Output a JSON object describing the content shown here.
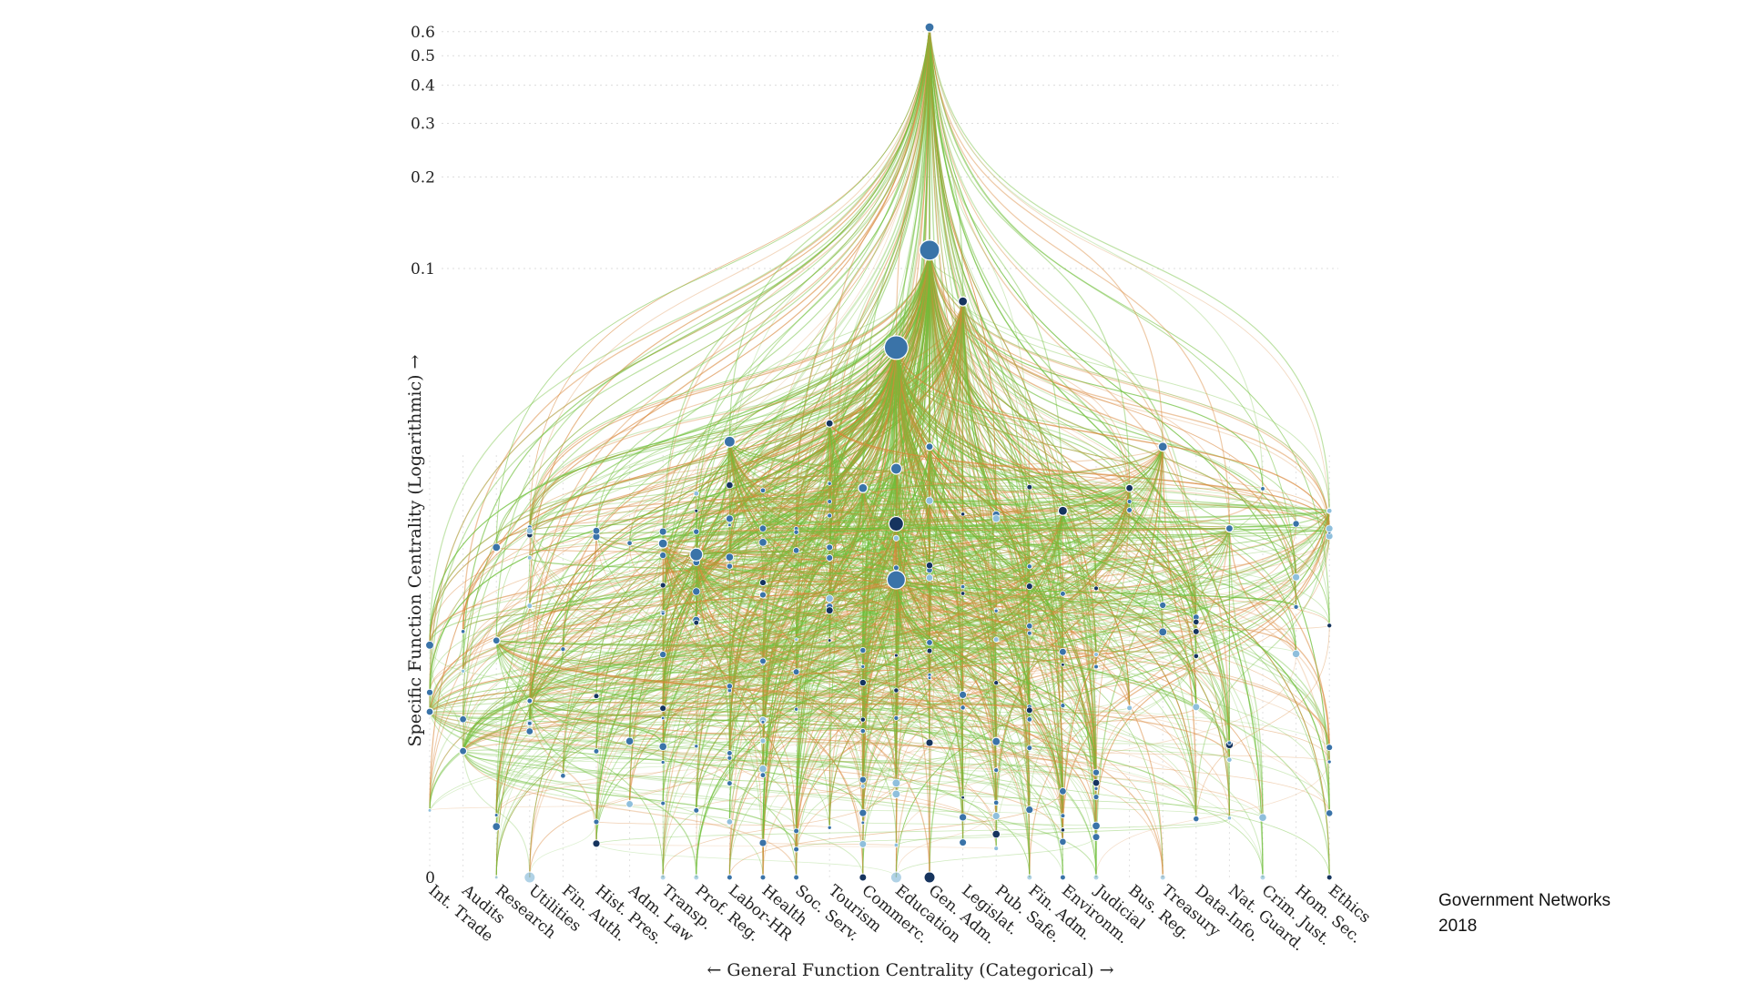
{
  "caption": {
    "title": "Government Networks",
    "year": "2018"
  },
  "colors": {
    "edge_green": "#6fbf3a",
    "edge_orange": "#d9873a",
    "node_blue": "#3a73a8",
    "node_dark": "#16345e",
    "node_light": "#8fbfdc"
  },
  "chart_data": {
    "type": "network-scatter",
    "xlabel": "← General Function Centrality (Categorical) →",
    "ylabel": "Specific Function Centrality (Logarithmic) →",
    "y_scale": "log",
    "yticks": [
      0,
      0.1,
      0.2,
      0.3,
      0.4,
      0.5,
      0.6
    ],
    "ytick_labels": [
      "0",
      "0.1",
      "0.2",
      "0.3",
      "0.4",
      "0.5",
      "0.6"
    ],
    "categories": [
      "Int. Trade",
      "Audits",
      "Research",
      "Utilities",
      "Fin. Auth.",
      "Hist. Pres.",
      "Adm. Law",
      "Transp.",
      "Prof. Reg.",
      "Labor-HR",
      "Health",
      "Soc. Serv.",
      "Tourism",
      "Commerc.",
      "Education",
      "Gen. Adm.",
      "Legislat.",
      "Pub. Safe.",
      "Fin. Adm.",
      "Environm.",
      "Judicial",
      "Bus. Reg.",
      "Treasury",
      "Data-Info.",
      "Nat. Guard.",
      "Crim. Just.",
      "Hom. Sec.",
      "Ethics"
    ],
    "hubs": [
      {
        "category": "Gen. Adm.",
        "value": 0.62,
        "size": 5
      },
      {
        "category": "Gen. Adm.",
        "value": 0.115,
        "size": 11
      },
      {
        "category": "Legislat.",
        "value": 0.078,
        "size": 5,
        "dark": true
      },
      {
        "category": "Education",
        "value": 0.055,
        "size": 13
      },
      {
        "category": "Tourism",
        "value": 0.031,
        "size": 4,
        "dark": true
      },
      {
        "category": "Labor-HR",
        "value": 0.027,
        "size": 6
      },
      {
        "category": "Gen. Adm.",
        "value": 0.026,
        "size": 4
      },
      {
        "category": "Education",
        "value": 0.022,
        "size": 6
      },
      {
        "category": "Treasury",
        "value": 0.026,
        "size": 5
      },
      {
        "category": "Bus. Reg.",
        "value": 0.019,
        "size": 4,
        "dark": true
      },
      {
        "category": "Commerc.",
        "value": 0.019,
        "size": 5
      },
      {
        "category": "Ethics",
        "value": 0.016,
        "size": 3,
        "light": true
      },
      {
        "category": "Environm.",
        "value": 0.016,
        "size": 5,
        "dark": true
      },
      {
        "category": "Education",
        "value": 0.0145,
        "size": 8,
        "dark": true
      },
      {
        "category": "Nat. Guard.",
        "value": 0.014,
        "size": 4
      },
      {
        "category": "Transp.",
        "value": 0.0125,
        "size": 5
      },
      {
        "category": "Prof. Reg.",
        "value": 0.0115,
        "size": 7
      },
      {
        "category": "Education",
        "value": 0.0095,
        "size": 10
      },
      {
        "category": "Int. Trade",
        "value": 0.0035,
        "size": 4
      },
      {
        "category": "Audits",
        "value": 0.0026,
        "size": 4
      },
      {
        "category": "Research",
        "value": 0.006,
        "size": 4
      },
      {
        "category": "Utilities",
        "value": 0.0038,
        "size": 3
      }
    ],
    "baseline_nodes": [
      {
        "category": "Research",
        "size": 2,
        "light": true
      },
      {
        "category": "Utilities",
        "size": 6,
        "light": true
      },
      {
        "category": "Transp.",
        "size": 3,
        "light": true
      },
      {
        "category": "Prof. Reg.",
        "size": 3,
        "light": true
      },
      {
        "category": "Labor-HR",
        "size": 3
      },
      {
        "category": "Health",
        "size": 3
      },
      {
        "category": "Soc. Serv.",
        "size": 3
      },
      {
        "category": "Commerc.",
        "size": 4,
        "dark": true
      },
      {
        "category": "Education",
        "size": 6,
        "light": true
      },
      {
        "category": "Gen. Adm.",
        "size": 6,
        "dark": true
      },
      {
        "category": "Fin. Adm.",
        "size": 3,
        "light": true
      },
      {
        "category": "Environm.",
        "size": 3
      },
      {
        "category": "Judicial",
        "size": 3,
        "light": true
      },
      {
        "category": "Treasury",
        "size": 3,
        "light": true
      },
      {
        "category": "Crim. Just.",
        "size": 3,
        "light": true
      },
      {
        "category": "Ethics",
        "size": 3,
        "dark": true
      }
    ]
  }
}
